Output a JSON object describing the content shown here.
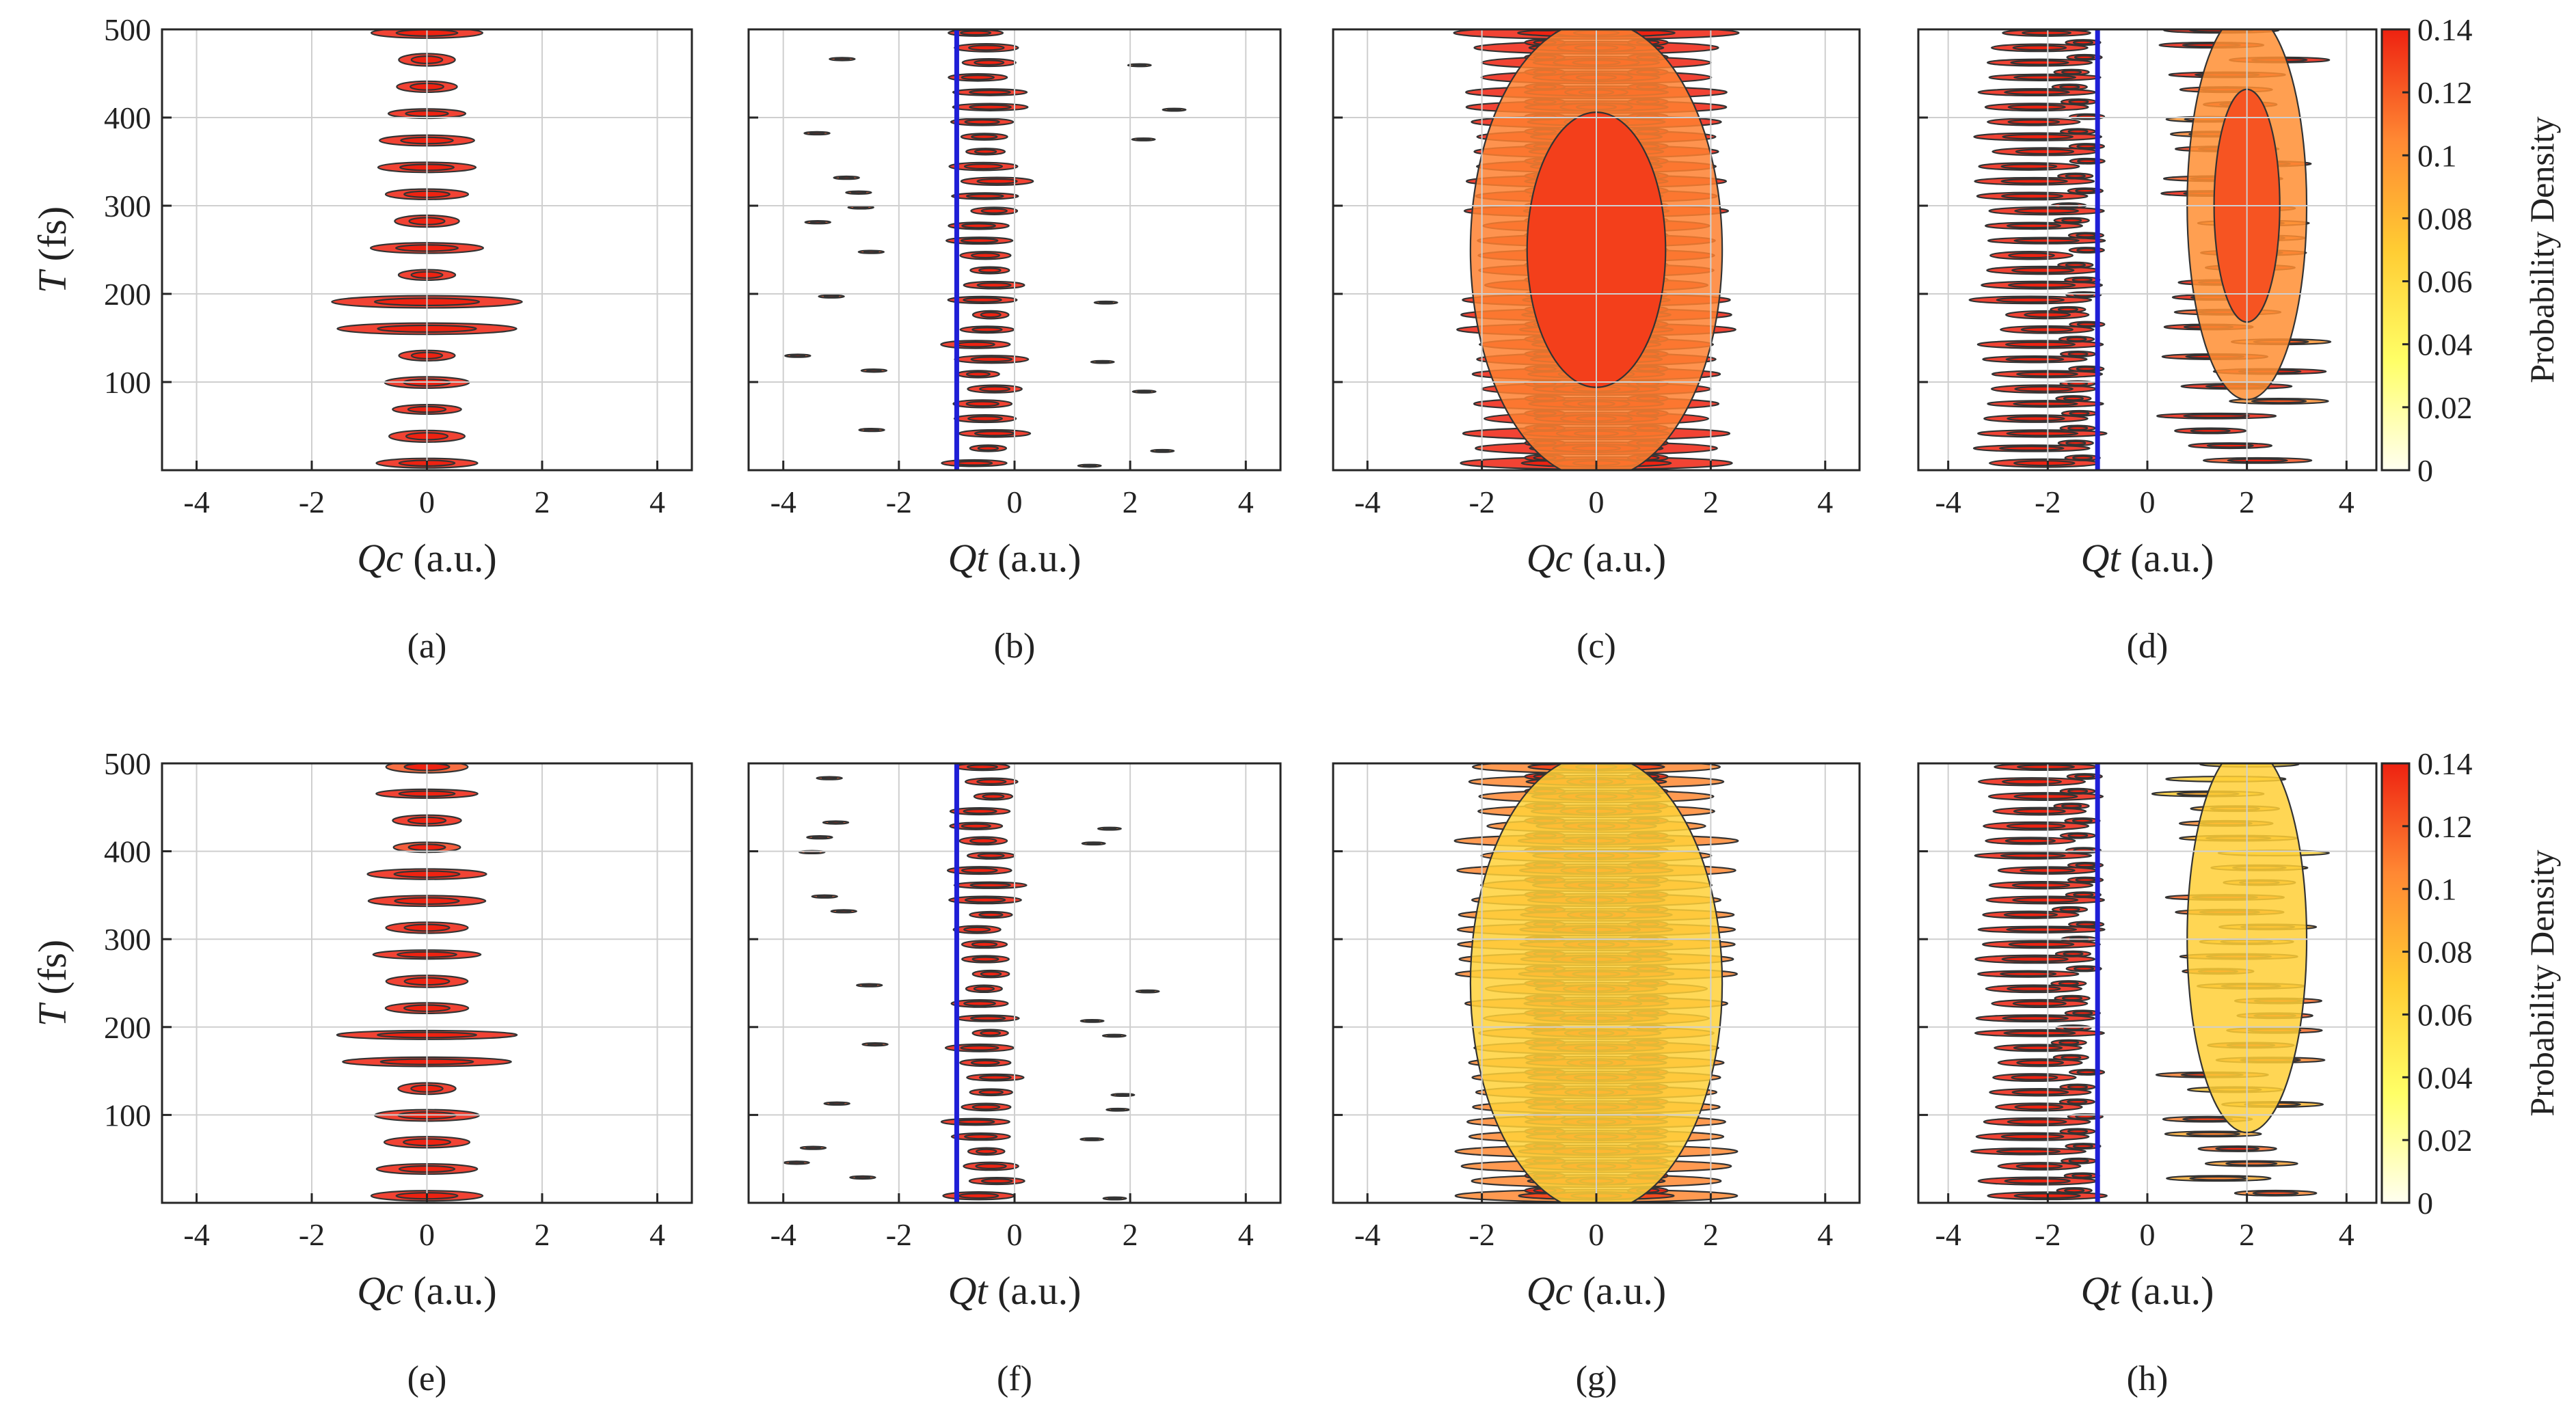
{
  "chart_data": [
    {
      "type": "heatmap",
      "panel": "(a)",
      "x_var": "Qc",
      "x_unit": "(a.u.)",
      "y_var": "T",
      "y_unit": "(fs)",
      "xlim": [
        -4.6,
        4.6
      ],
      "ylim": [
        0,
        500
      ],
      "xticks": [
        -4,
        -2,
        0,
        2,
        4
      ],
      "yticks": [
        100,
        200,
        300,
        400,
        500
      ],
      "show_ylabel": true,
      "marker_x": null,
      "pattern": "narrow",
      "intensity": 0.72
    },
    {
      "type": "heatmap",
      "panel": "(b)",
      "x_var": "Qt",
      "x_unit": "(a.u.)",
      "y_var": "T",
      "y_unit": "(fs)",
      "xlim": [
        -4.6,
        4.6
      ],
      "ylim": [
        0,
        500
      ],
      "xticks": [
        -4,
        -2,
        0,
        2,
        4
      ],
      "yticks": [
        100,
        200,
        300,
        400,
        500
      ],
      "show_ylabel": false,
      "marker_x": -1,
      "pattern": "shifted",
      "intensity": 0.85
    },
    {
      "type": "heatmap",
      "panel": "(c)",
      "x_var": "Qc",
      "x_unit": "(a.u.)",
      "y_var": "T",
      "y_unit": "(fs)",
      "xlim": [
        -4.6,
        4.6
      ],
      "ylim": [
        0,
        500
      ],
      "xticks": [
        -4,
        -2,
        0,
        2,
        4
      ],
      "yticks": [
        100,
        200,
        300,
        400,
        500
      ],
      "show_ylabel": false,
      "marker_x": null,
      "pattern": "wide",
      "intensity": 0.85
    },
    {
      "type": "heatmap",
      "panel": "(d)",
      "x_var": "Qt",
      "x_unit": "(a.u.)",
      "y_var": "T",
      "y_unit": "(fs)",
      "xlim": [
        -4.6,
        4.6
      ],
      "ylim": [
        0,
        500
      ],
      "xticks": [
        -4,
        -2,
        0,
        2,
        4
      ],
      "yticks": [
        100,
        200,
        300,
        400,
        500
      ],
      "show_ylabel": false,
      "marker_x": -1,
      "pattern": "split",
      "intensity": 0.95
    },
    {
      "type": "heatmap",
      "panel": "(e)",
      "x_var": "Qc",
      "x_unit": "(a.u.)",
      "y_var": "T",
      "y_unit": "(fs)",
      "xlim": [
        -4.6,
        4.6
      ],
      "ylim": [
        0,
        500
      ],
      "xticks": [
        -4,
        -2,
        0,
        2,
        4
      ],
      "yticks": [
        100,
        200,
        300,
        400,
        500
      ],
      "show_ylabel": true,
      "marker_x": null,
      "pattern": "narrow",
      "intensity": 0.4
    },
    {
      "type": "heatmap",
      "panel": "(f)",
      "x_var": "Qt",
      "x_unit": "(a.u.)",
      "y_var": "T",
      "y_unit": "(fs)",
      "xlim": [
        -4.6,
        4.6
      ],
      "ylim": [
        0,
        500
      ],
      "xticks": [
        -4,
        -2,
        0,
        2,
        4
      ],
      "yticks": [
        100,
        200,
        300,
        400,
        500
      ],
      "show_ylabel": false,
      "marker_x": -1,
      "pattern": "shifted",
      "intensity": 0.45
    },
    {
      "type": "heatmap",
      "panel": "(g)",
      "x_var": "Qc",
      "x_unit": "(a.u.)",
      "y_var": "T",
      "y_unit": "(fs)",
      "xlim": [
        -4.6,
        4.6
      ],
      "ylim": [
        0,
        500
      ],
      "xticks": [
        -4,
        -2,
        0,
        2,
        4
      ],
      "yticks": [
        100,
        200,
        300,
        400,
        500
      ],
      "show_ylabel": false,
      "marker_x": null,
      "pattern": "wide",
      "intensity": 0.45
    },
    {
      "type": "heatmap",
      "panel": "(h)",
      "x_var": "Qt",
      "x_unit": "(a.u.)",
      "y_var": "T",
      "y_unit": "(fs)",
      "xlim": [
        -4.6,
        4.6
      ],
      "ylim": [
        0,
        500
      ],
      "xticks": [
        -4,
        -2,
        0,
        2,
        4
      ],
      "yticks": [
        100,
        200,
        300,
        400,
        500
      ],
      "show_ylabel": false,
      "marker_x": -1,
      "pattern": "split",
      "intensity": 0.55
    }
  ],
  "colorbars": [
    {
      "label": "Probability Density",
      "range": [
        0,
        0.14
      ],
      "ticks": [
        "0",
        "0.02",
        "0.04",
        "0.06",
        "0.08",
        "0.1",
        "0.12",
        "0.14"
      ],
      "colormap": [
        "#fffff0",
        "#ffff66",
        "#ffcc33",
        "#ff8833",
        "#ee2211"
      ]
    },
    {
      "label": "Probability Density",
      "range": [
        0,
        0.14
      ],
      "ticks": [
        "0",
        "0.02",
        "0.04",
        "0.06",
        "0.08",
        "0.1",
        "0.12",
        "0.14"
      ],
      "colormap": [
        "#fffff0",
        "#ffff66",
        "#ffcc33",
        "#ff8833",
        "#ee2211"
      ]
    }
  ],
  "colors": {
    "marker_line": "#1f1fd6",
    "contour": "#333333",
    "grid": "#cfcfcf"
  }
}
